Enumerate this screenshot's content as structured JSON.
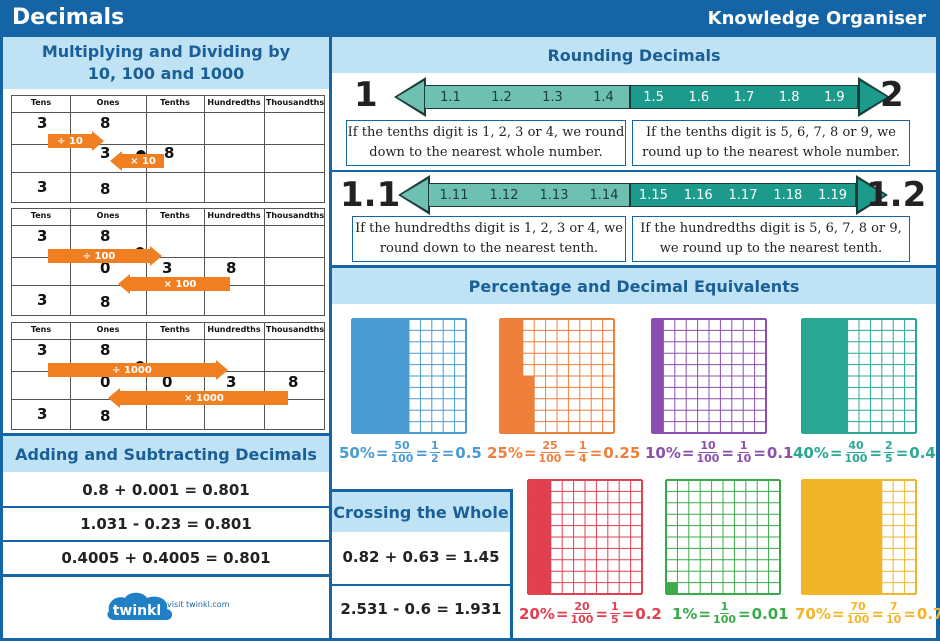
{
  "header": {
    "title": "Decimals",
    "right": "Knowledge Organiser"
  },
  "multiply": {
    "title_line1": "Multiplying and Dividing by",
    "title_line2": "10, 100 and 1000",
    "headers": [
      "Tens",
      "Ones",
      "Tenths",
      "Hundredths",
      "Thousandths"
    ],
    "tables": [
      {
        "top_digits": [
          "3",
          "8"
        ],
        "mid_digits": [
          "3",
          "8"
        ],
        "bottom_digits": [
          "3",
          "8"
        ],
        "div_label": "÷ 10",
        "mul_label": "× 10"
      },
      {
        "top_digits": [
          "3",
          "8"
        ],
        "mid_digits": [
          "0",
          "3",
          "8"
        ],
        "bottom_digits": [
          "3",
          "8"
        ],
        "div_label": "÷ 100",
        "mul_label": "× 100"
      },
      {
        "top_digits": [
          "3",
          "8"
        ],
        "mid_digits": [
          "0",
          "0",
          "3",
          "8"
        ],
        "bottom_digits": [
          "3",
          "8"
        ],
        "div_label": "÷ 1000",
        "mul_label": "× 1000"
      }
    ]
  },
  "adding": {
    "title": "Adding and Subtracting Decimals",
    "equations": [
      "0.8 + 0.001 = 0.801",
      "1.031 - 0.23 = 0.801",
      "0.4005 + 0.4005 = 0.801"
    ]
  },
  "crossing": {
    "title": "Crossing the Whole",
    "equations": [
      "0.82 + 0.63 = 1.45",
      "2.531 - 0.6 = 1.931"
    ]
  },
  "footer": {
    "logo_text": "twinkl",
    "link_text": "visit twinkl.com"
  },
  "rounding": {
    "title": "Rounding Decimals",
    "line1": {
      "left_num": "1",
      "right_num": "2",
      "left_ticks": [
        "1.1",
        "1.2",
        "1.3",
        "1.4"
      ],
      "right_ticks": [
        "1.5",
        "1.6",
        "1.7",
        "1.8",
        "1.9"
      ],
      "left_text": "If the tenths digit is 1, 2, 3 or 4, we round down to the nearest whole number.",
      "right_text": "If the tenths digit is 5, 6, 7, 8 or 9, we round up to the nearest whole number."
    },
    "line2": {
      "left_num": "1.1",
      "right_num": "1.2",
      "left_ticks": [
        "1.11",
        "1.12",
        "1.13",
        "1.14"
      ],
      "right_ticks": [
        "1.15",
        "1.16",
        "1.17",
        "1.18",
        "1.19"
      ],
      "left_text": "If the hundredths digit is 1, 2, 3 or 4, we round down to the nearest tenth.",
      "right_text": "If the hundredths digit is 5, 6, 7, 8 or 9, we round up to the nearest tenth."
    }
  },
  "percentages": {
    "title": "Percentage and Decimal Equivalents",
    "items": [
      {
        "percent": "50%",
        "f1_num": "50",
        "f1_den": "100",
        "f2_num": "1",
        "f2_den": "2",
        "decimal": "0.5",
        "filled": 50,
        "color": "#4a9bd3"
      },
      {
        "percent": "25%",
        "f1_num": "25",
        "f1_den": "100",
        "f2_num": "1",
        "f2_den": "4",
        "decimal": "0.25",
        "filled": 25,
        "color": "#f07f3c"
      },
      {
        "percent": "10%",
        "f1_num": "10",
        "f1_den": "100",
        "f2_num": "1",
        "f2_den": "10",
        "decimal": "0.1",
        "filled": 10,
        "color": "#8b4fb0"
      },
      {
        "percent": "40%",
        "f1_num": "40",
        "f1_den": "100",
        "f2_num": "2",
        "f2_den": "5",
        "decimal": "0.4",
        "filled": 40,
        "color": "#2aa894"
      },
      {
        "percent": "20%",
        "f1_num": "20",
        "f1_den": "100",
        "f2_num": "1",
        "f2_den": "5",
        "decimal": "0.2",
        "filled": 20,
        "color": "#e0404f"
      },
      {
        "percent": "1%",
        "f1_num": "1",
        "f1_den": "100",
        "f2_num": "",
        "f2_den": "",
        "decimal": "0.01",
        "filled": 1,
        "color": "#3aaa4a"
      },
      {
        "percent": "70%",
        "f1_num": "70",
        "f1_den": "100",
        "f2_num": "7",
        "f2_den": "10",
        "decimal": "0.7",
        "filled": 70,
        "color": "#f2b52a"
      }
    ]
  }
}
